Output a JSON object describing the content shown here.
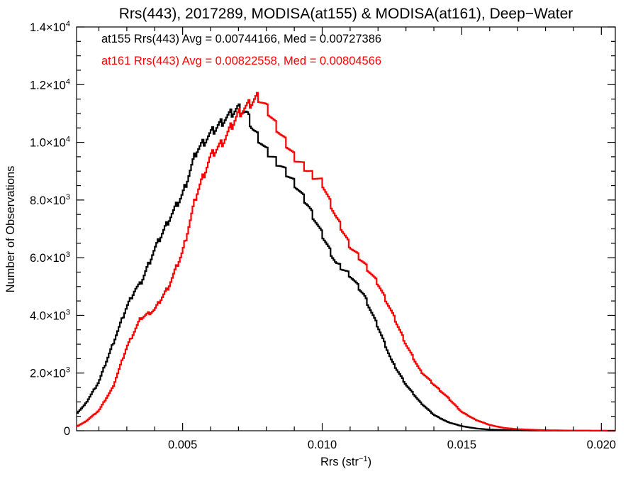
{
  "chart_data": {
    "type": "line",
    "title": "Rrs(443), 2017289, MODISA(at155) & MODISA(at161), Deep−Water",
    "xlabel": "Rrs (str",
    "xlabel_sup": "−1",
    "xlabel_suffix": ")",
    "ylabel": "Number of Observations",
    "xlim": [
      0.0012,
      0.0205
    ],
    "ylim": [
      0,
      14000
    ],
    "x_ticks": [
      {
        "value": 0.005,
        "label": "0.005"
      },
      {
        "value": 0.01,
        "label": "0.010"
      },
      {
        "value": 0.015,
        "label": "0.015"
      },
      {
        "value": 0.02,
        "label": "0.020"
      }
    ],
    "y_ticks": [
      {
        "value": 0,
        "label": "0",
        "exp": ""
      },
      {
        "value": 2000,
        "label": "2.0×10",
        "exp": "3"
      },
      {
        "value": 4000,
        "label": "4.0×10",
        "exp": "3"
      },
      {
        "value": 6000,
        "label": "6.0×10",
        "exp": "3"
      },
      {
        "value": 8000,
        "label": "8.0×10",
        "exp": "3"
      },
      {
        "value": 10000,
        "label": "1.0×10",
        "exp": "4"
      },
      {
        "value": 12000,
        "label": "1.2×10",
        "exp": "4"
      },
      {
        "value": 14000,
        "label": "1.4×10",
        "exp": "4"
      }
    ],
    "annotations": [
      {
        "text": "at155 Rrs(443) Avg = 0.00744166, Med = 0.00727386",
        "color": "#000000"
      },
      {
        "text": "at161 Rrs(443) Avg = 0.00822558, Med = 0.00804566",
        "color": "#ff0000"
      }
    ],
    "grid": false,
    "series": [
      {
        "name": "at155",
        "color": "#000000",
        "points": [
          [
            0.0012,
            600
          ],
          [
            0.0015,
            900
          ],
          [
            0.002,
            1700
          ],
          [
            0.0025,
            3000
          ],
          [
            0.003,
            4300
          ],
          [
            0.0033,
            4900
          ],
          [
            0.0035,
            5100
          ],
          [
            0.004,
            6300
          ],
          [
            0.0045,
            7300
          ],
          [
            0.005,
            8200
          ],
          [
            0.0055,
            9700
          ],
          [
            0.006,
            10300
          ],
          [
            0.0065,
            10800
          ],
          [
            0.007,
            11200
          ],
          [
            0.0073,
            11000
          ],
          [
            0.0075,
            10500
          ],
          [
            0.008,
            9700
          ],
          [
            0.0085,
            9200
          ],
          [
            0.009,
            8600
          ],
          [
            0.0095,
            7800
          ],
          [
            0.01,
            6800
          ],
          [
            0.0105,
            5800
          ],
          [
            0.011,
            5400
          ],
          [
            0.0115,
            4700
          ],
          [
            0.012,
            3600
          ],
          [
            0.0125,
            2400
          ],
          [
            0.013,
            1600
          ],
          [
            0.0135,
            1000
          ],
          [
            0.014,
            550
          ],
          [
            0.0145,
            300
          ],
          [
            0.015,
            160
          ],
          [
            0.0155,
            80
          ],
          [
            0.016,
            40
          ],
          [
            0.017,
            15
          ],
          [
            0.018,
            5
          ],
          [
            0.019,
            2
          ],
          [
            0.0205,
            0
          ]
        ]
      },
      {
        "name": "at161",
        "color": "#ff0000",
        "points": [
          [
            0.0012,
            150
          ],
          [
            0.0015,
            300
          ],
          [
            0.002,
            700
          ],
          [
            0.0025,
            1500
          ],
          [
            0.003,
            2900
          ],
          [
            0.0035,
            3900
          ],
          [
            0.004,
            4200
          ],
          [
            0.0045,
            5000
          ],
          [
            0.005,
            6200
          ],
          [
            0.0055,
            8200
          ],
          [
            0.006,
            9500
          ],
          [
            0.0065,
            10100
          ],
          [
            0.007,
            11000
          ],
          [
            0.0075,
            11400
          ],
          [
            0.0077,
            11600
          ],
          [
            0.008,
            11200
          ],
          [
            0.0085,
            10300
          ],
          [
            0.009,
            9500
          ],
          [
            0.0095,
            9000
          ],
          [
            0.01,
            8600
          ],
          [
            0.0105,
            7400
          ],
          [
            0.011,
            6400
          ],
          [
            0.0115,
            5800
          ],
          [
            0.012,
            5100
          ],
          [
            0.0125,
            4100
          ],
          [
            0.013,
            3000
          ],
          [
            0.0135,
            2100
          ],
          [
            0.014,
            1600
          ],
          [
            0.0145,
            1150
          ],
          [
            0.015,
            650
          ],
          [
            0.0155,
            380
          ],
          [
            0.016,
            200
          ],
          [
            0.0165,
            100
          ],
          [
            0.017,
            55
          ],
          [
            0.018,
            20
          ],
          [
            0.019,
            5
          ],
          [
            0.0205,
            0
          ]
        ]
      }
    ]
  }
}
